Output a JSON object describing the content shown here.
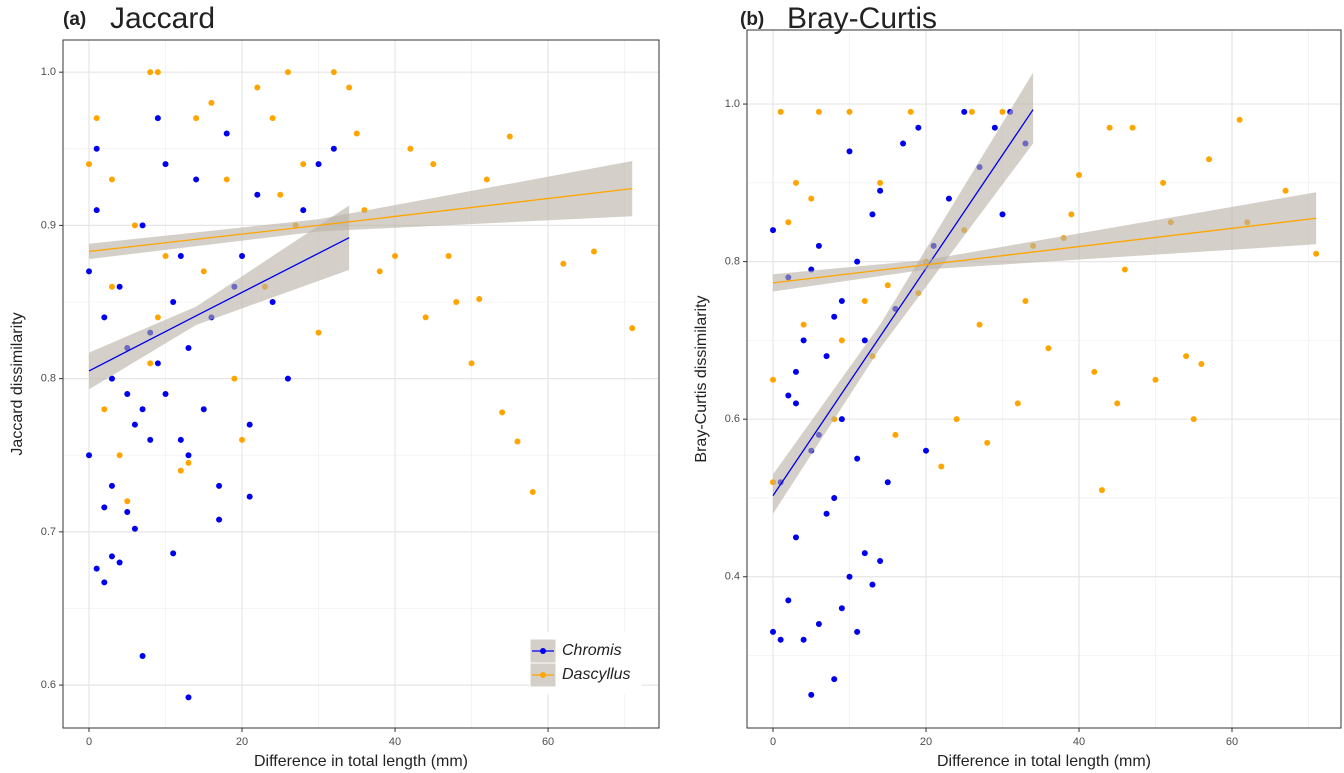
{
  "chart_data": [
    {
      "type": "scatter",
      "panel_label": "(a)",
      "title": "Jaccard",
      "x_label": "Difference in total length (mm)",
      "y_label": "Jaccard dissimilarity",
      "xlim": [
        -3.4,
        74.5
      ],
      "ylim": [
        0.572,
        1.021
      ],
      "xticks": [
        0,
        20,
        40,
        60
      ],
      "yticks": [
        0.6,
        0.7,
        0.8,
        0.9,
        {
          "value": 1,
          "label": "1.0"
        }
      ],
      "minor_xticks": [
        10,
        30,
        50,
        70
      ],
      "minor_yticks": [
        0.65,
        0.75,
        0.85,
        0.95
      ],
      "grid": true,
      "legend": "lower right",
      "band_color": "#b8b1a5",
      "series": [
        {
          "name": "Chromis",
          "color": "#0000ee",
          "x": [
            0,
            0,
            1,
            1,
            2,
            2,
            3,
            3,
            4,
            4,
            5,
            5,
            6,
            6,
            7,
            7,
            8,
            8,
            9,
            9,
            10,
            10,
            11,
            11,
            12,
            12,
            13,
            13,
            14,
            15,
            16,
            17,
            18,
            19,
            20,
            21,
            22,
            24,
            26,
            28,
            30,
            32,
            1,
            2,
            3,
            7,
            13,
            17,
            21,
            5
          ],
          "values": [
            0.75,
            0.87,
            0.676,
            0.91,
            0.667,
            0.84,
            0.684,
            0.8,
            0.68,
            0.86,
            0.713,
            0.82,
            0.702,
            0.77,
            0.619,
            0.9,
            0.76,
            0.83,
            0.97,
            0.81,
            0.79,
            0.94,
            0.686,
            0.85,
            0.76,
            0.88,
            0.592,
            0.82,
            0.93,
            0.78,
            0.84,
            0.708,
            0.96,
            0.86,
            0.88,
            0.723,
            0.92,
            0.85,
            0.8,
            0.91,
            0.94,
            0.95,
            0.95,
            0.716,
            0.73,
            0.78,
            0.75,
            0.73,
            0.77,
            0.79
          ],
          "fit": {
            "x": [
              0,
              14,
              34
            ],
            "values": [
              0.805,
              0.841,
              0.892
            ],
            "lower": [
              0.793,
              0.835,
              0.871
            ],
            "upper": [
              0.817,
              0.847,
              0.913
            ]
          }
        },
        {
          "name": "Dascyllus",
          "color": "#ffa500",
          "x": [
            0,
            1,
            2,
            3,
            4,
            5,
            6,
            8,
            9,
            10,
            12,
            14,
            16,
            18,
            20,
            22,
            24,
            26,
            28,
            30,
            32,
            34,
            36,
            38,
            40,
            42,
            44,
            45,
            47,
            48,
            50,
            51,
            52,
            54,
            55,
            56,
            58,
            62,
            66,
            71,
            3,
            8,
            15,
            25,
            35,
            13,
            19,
            27,
            9,
            23
          ],
          "values": [
            0.94,
            0.97,
            0.78,
            0.93,
            0.75,
            0.72,
            0.9,
            1,
            1,
            0.88,
            0.74,
            0.97,
            0.98,
            0.93,
            0.76,
            0.99,
            0.97,
            1,
            0.94,
            0.83,
            1,
            0.99,
            0.91,
            0.87,
            0.88,
            0.95,
            0.84,
            0.94,
            0.88,
            0.85,
            0.81,
            0.852,
            0.93,
            0.778,
            0.958,
            0.759,
            0.726,
            0.875,
            0.883,
            0.833,
            0.86,
            0.81,
            0.87,
            0.92,
            0.96,
            0.745,
            0.8,
            0.9,
            0.84,
            0.86
          ],
          "fit": {
            "x": [
              0,
              30,
              71
            ],
            "values": [
              0.883,
              0.9,
              0.924
            ],
            "lower": [
              0.878,
              0.896,
              0.906
            ],
            "upper": [
              0.888,
              0.904,
              0.942
            ]
          }
        }
      ]
    },
    {
      "type": "scatter",
      "panel_label": "(b)",
      "title": "Bray-Curtis",
      "x_label": "Difference in total length (mm)",
      "y_label": "Bray-Curtis dissimilarity",
      "xlim": [
        -3.4,
        74.25
      ],
      "ylim": [
        0.208,
        1.094
      ],
      "xticks": [
        0,
        20,
        40,
        60
      ],
      "yticks": [
        0.4,
        0.6,
        0.8,
        {
          "value": 1,
          "label": "1.0"
        }
      ],
      "minor_xticks": [
        10,
        30,
        50,
        70
      ],
      "minor_yticks": [
        0.3,
        0.5,
        0.7,
        0.9
      ],
      "grid": true,
      "band_color": "#b8b1a5",
      "series": [
        {
          "name": "Chromis",
          "color": "#0000ee",
          "x": [
            0,
            0,
            1,
            1,
            2,
            2,
            3,
            3,
            4,
            4,
            5,
            5,
            6,
            6,
            7,
            7,
            8,
            8,
            9,
            9,
            10,
            10,
            11,
            11,
            12,
            12,
            13,
            13,
            14,
            14,
            15,
            17,
            19,
            21,
            23,
            25,
            27,
            29,
            31,
            33,
            5,
            8,
            2,
            9,
            3,
            6,
            11,
            16,
            20,
            30
          ],
          "values": [
            0.33,
            0.84,
            0.32,
            0.52,
            0.37,
            0.78,
            0.45,
            0.62,
            0.32,
            0.7,
            0.25,
            0.79,
            0.34,
            0.82,
            0.48,
            0.68,
            0.27,
            0.73,
            0.36,
            0.75,
            0.4,
            0.94,
            0.33,
            0.8,
            0.43,
            0.7,
            0.39,
            0.86,
            0.42,
            0.89,
            0.52,
            0.95,
            0.97,
            0.82,
            0.88,
            0.99,
            0.92,
            0.97,
            0.99,
            0.95,
            0.56,
            0.5,
            0.63,
            0.6,
            0.66,
            0.58,
            0.55,
            0.74,
            0.56,
            0.86
          ],
          "fit": {
            "x": [
              0,
              14,
              34
            ],
            "values": [
              0.503,
              0.705,
              0.993
            ],
            "lower": [
              0.48,
              0.69,
              0.95
            ],
            "upper": [
              0.53,
              0.72,
              1.04
            ]
          }
        },
        {
          "name": "Dascyllus",
          "color": "#ffa500",
          "x": [
            0,
            1,
            2,
            3,
            4,
            6,
            8,
            10,
            12,
            14,
            16,
            18,
            20,
            22,
            24,
            26,
            28,
            30,
            32,
            34,
            36,
            38,
            40,
            42,
            43,
            44,
            45,
            47,
            50,
            51,
            52,
            54,
            55,
            56,
            57,
            61,
            62,
            67,
            71,
            0,
            5,
            9,
            15,
            19,
            25,
            33,
            39,
            46,
            13,
            27
          ],
          "values": [
            0.65,
            0.99,
            0.85,
            0.9,
            0.72,
            0.99,
            0.6,
            0.99,
            0.75,
            0.9,
            0.58,
            0.99,
            0.8,
            0.54,
            0.6,
            0.99,
            0.57,
            0.99,
            0.62,
            0.82,
            0.69,
            0.83,
            0.91,
            0.66,
            0.51,
            0.97,
            0.62,
            0.97,
            0.65,
            0.9,
            0.85,
            0.68,
            0.6,
            0.67,
            0.93,
            0.98,
            0.85,
            0.89,
            0.81,
            0.52,
            0.88,
            0.7,
            0.77,
            0.76,
            0.84,
            0.75,
            0.86,
            0.79,
            0.68,
            0.72
          ],
          "fit": {
            "x": [
              0,
              20,
              71
            ],
            "values": [
              0.773,
              0.796,
              0.855
            ],
            "lower": [
              0.762,
              0.79,
              0.822
            ],
            "upper": [
              0.784,
              0.802,
              0.888
            ]
          }
        }
      ]
    }
  ]
}
